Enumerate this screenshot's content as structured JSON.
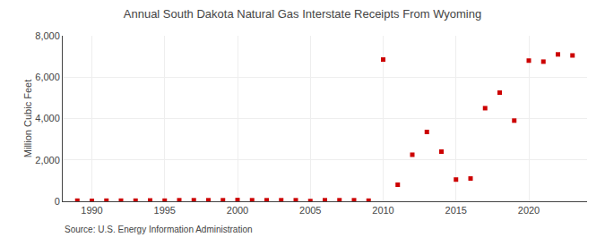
{
  "chart_data": {
    "type": "scatter",
    "title": "Annual South Dakota Natural Gas Interstate Receipts From Wyoming",
    "ylabel": "Million Cubic Feet",
    "annotations": [
      "Source: U.S. Energy Information Administration"
    ],
    "x": [
      1989,
      1990,
      1991,
      1992,
      1993,
      1994,
      1995,
      1996,
      1997,
      1998,
      1999,
      2000,
      2001,
      2002,
      2003,
      2004,
      2005,
      2006,
      2007,
      2008,
      2009,
      2010,
      2011,
      2012,
      2013,
      2014,
      2015,
      2016,
      2017,
      2018,
      2019,
      2020,
      2021,
      2022,
      2023
    ],
    "values": [
      30,
      20,
      30,
      30,
      30,
      40,
      30,
      50,
      50,
      50,
      50,
      60,
      50,
      50,
      50,
      50,
      10,
      50,
      50,
      50,
      30,
      6850,
      800,
      2250,
      3350,
      2400,
      1050,
      1100,
      4500,
      5250,
      3900,
      6800,
      6750,
      7100,
      7050
    ],
    "color": "#cc0000",
    "marker": "square",
    "xlim": [
      1988,
      2024
    ],
    "xticks": [
      1990,
      1995,
      2000,
      2005,
      2010,
      2015,
      2020
    ],
    "ylim": [
      0,
      8000
    ],
    "yticks": [
      0,
      {
        "value": 2000,
        "label": "2,000"
      },
      {
        "value": 4000,
        "label": "4,000"
      },
      {
        "value": 6000,
        "label": "6,000"
      },
      {
        "value": 8000,
        "label": "8,000"
      }
    ],
    "grid": true
  }
}
